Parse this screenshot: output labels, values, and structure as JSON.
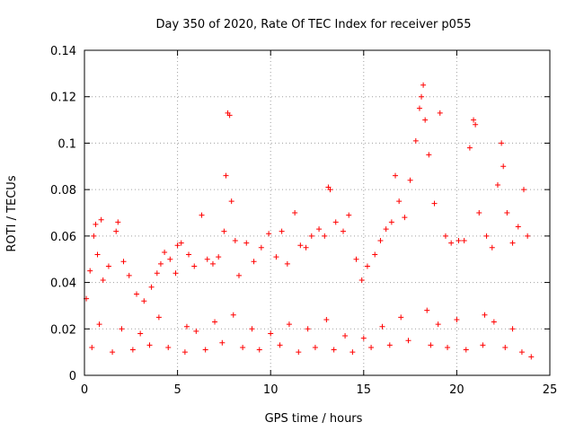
{
  "chart_data": {
    "type": "scatter",
    "title": "Day 350 of 2020, Rate Of TEC Index for receiver p055",
    "xlabel": "GPS time / hours",
    "ylabel": "ROTI / TECUs",
    "xlim": [
      0,
      25
    ],
    "ylim": [
      0,
      0.14
    ],
    "xticks": [
      0,
      5,
      10,
      15,
      20,
      25
    ],
    "yticks": [
      0,
      0.02,
      0.04,
      0.06,
      0.08,
      0.1,
      0.12,
      0.14
    ],
    "xtick_labels": [
      "0",
      "5",
      "10",
      "15",
      "20",
      "25"
    ],
    "ytick_labels": [
      "0",
      "0.02",
      "0.04",
      "0.06",
      "0.08",
      "0.1",
      "0.12",
      "0.14"
    ],
    "grid": true,
    "marker": "+",
    "color": "#ff0000",
    "series": [
      {
        "name": "ROTI",
        "x": [
          0.1,
          0.3,
          0.5,
          0.6,
          0.7,
          0.9,
          1.0,
          1.3,
          1.7,
          1.8,
          2.1,
          2.4,
          2.8,
          3.2,
          3.6,
          3.9,
          4.1,
          4.3,
          4.6,
          4.9,
          5.0,
          5.2,
          5.6,
          5.9,
          6.3,
          6.6,
          6.9,
          7.2,
          7.5,
          7.6,
          7.7,
          7.8,
          7.9,
          8.1,
          8.3,
          8.7,
          9.1,
          9.5,
          9.9,
          10.3,
          10.6,
          10.9,
          11.3,
          11.6,
          11.9,
          12.2,
          12.6,
          12.9,
          13.1,
          13.2,
          13.5,
          13.9,
          14.2,
          14.6,
          14.9,
          15.2,
          15.6,
          15.9,
          16.2,
          16.5,
          16.7,
          16.9,
          17.2,
          17.5,
          17.8,
          18.0,
          18.1,
          18.2,
          18.3,
          18.5,
          18.8,
          19.1,
          19.4,
          19.7,
          20.1,
          20.4,
          20.7,
          20.9,
          21.0,
          21.2,
          21.6,
          21.9,
          22.2,
          22.4,
          22.5,
          22.7,
          23.0,
          23.3,
          23.6,
          23.8,
          0.4,
          1.5,
          2.6,
          3.5,
          4.5,
          5.4,
          6.5,
          7.4,
          8.5,
          9.4,
          10.5,
          11.5,
          12.4,
          13.4,
          14.4,
          15.4,
          16.4,
          17.4,
          18.6,
          19.5,
          20.5,
          21.4,
          22.6,
          23.5,
          0.8,
          2.0,
          3.0,
          4.0,
          5.5,
          6.0,
          7.0,
          8.0,
          9.0,
          10.0,
          11.0,
          12.0,
          13.0,
          14.0,
          15.0,
          16.0,
          17.0,
          18.4,
          19.0,
          20.0,
          21.5,
          22.0,
          23.0,
          24.0
        ],
        "y": [
          0.033,
          0.045,
          0.06,
          0.065,
          0.052,
          0.067,
          0.041,
          0.047,
          0.062,
          0.066,
          0.049,
          0.043,
          0.035,
          0.032,
          0.038,
          0.044,
          0.048,
          0.053,
          0.05,
          0.044,
          0.056,
          0.057,
          0.052,
          0.047,
          0.069,
          0.05,
          0.048,
          0.051,
          0.062,
          0.086,
          0.113,
          0.112,
          0.075,
          0.058,
          0.043,
          0.057,
          0.049,
          0.055,
          0.061,
          0.051,
          0.062,
          0.048,
          0.07,
          0.056,
          0.055,
          0.06,
          0.063,
          0.06,
          0.081,
          0.08,
          0.066,
          0.062,
          0.069,
          0.05,
          0.041,
          0.047,
          0.052,
          0.058,
          0.063,
          0.066,
          0.086,
          0.075,
          0.068,
          0.084,
          0.101,
          0.115,
          0.12,
          0.125,
          0.11,
          0.095,
          0.074,
          0.113,
          0.06,
          0.057,
          0.058,
          0.058,
          0.098,
          0.11,
          0.108,
          0.07,
          0.06,
          0.055,
          0.082,
          0.1,
          0.09,
          0.07,
          0.057,
          0.064,
          0.08,
          0.06,
          0.012,
          0.01,
          0.011,
          0.013,
          0.012,
          0.01,
          0.011,
          0.014,
          0.012,
          0.011,
          0.013,
          0.01,
          0.012,
          0.011,
          0.01,
          0.012,
          0.013,
          0.015,
          0.013,
          0.012,
          0.011,
          0.013,
          0.012,
          0.01,
          0.022,
          0.02,
          0.018,
          0.025,
          0.021,
          0.019,
          0.023,
          0.026,
          0.02,
          0.018,
          0.022,
          0.02,
          0.024,
          0.017,
          0.016,
          0.021,
          0.025,
          0.028,
          0.022,
          0.024,
          0.026,
          0.023,
          0.02,
          0.008
        ]
      }
    ]
  }
}
